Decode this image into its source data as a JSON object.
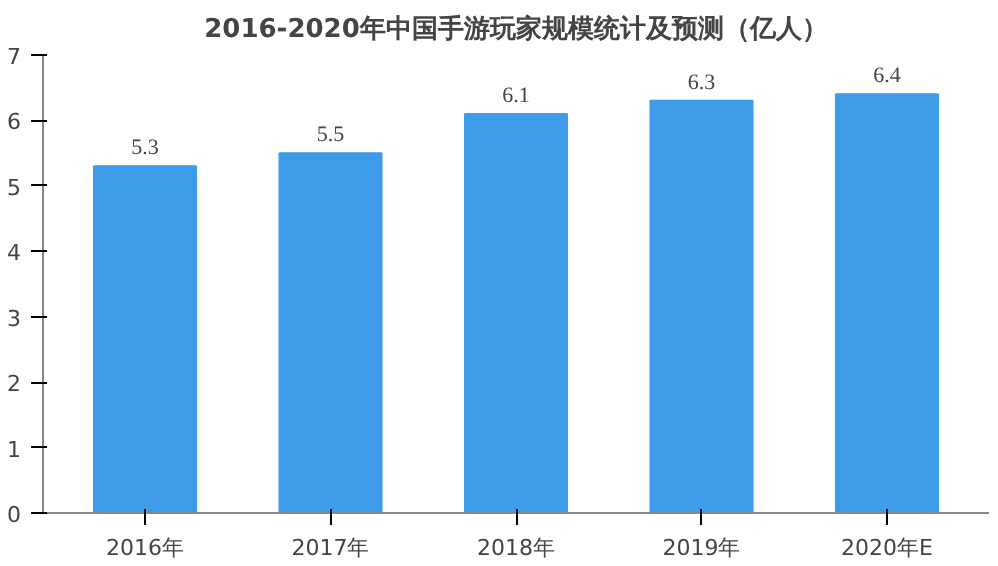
{
  "chart_data": {
    "type": "bar",
    "title": "2016-2020年中国手游玩家规模统计及预测（亿人）",
    "categories": [
      "2016年",
      "2017年",
      "2018年",
      "2019年",
      "2020年E"
    ],
    "values": [
      5.3,
      5.5,
      6.1,
      6.3,
      6.4
    ],
    "color": "#3d9be9",
    "ylim": [
      0,
      7
    ],
    "yticks": [
      0,
      1,
      2,
      3,
      4,
      5,
      6,
      7
    ],
    "data_labels": true,
    "grid": false
  }
}
